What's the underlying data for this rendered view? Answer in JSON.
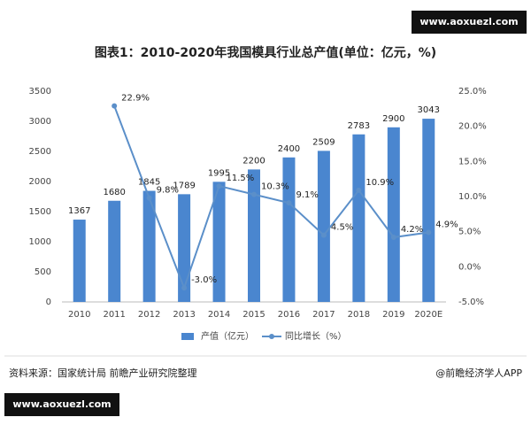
{
  "watermark_top": "www.aoxuezl.com",
  "watermark_bottom": "www.aoxuezl.com",
  "chart_data": {
    "type": "bar_line",
    "title": "图表1：2010-2020年我国模具行业总产值(单位：亿元，%)",
    "categories": [
      "2010",
      "2011",
      "2012",
      "2013",
      "2014",
      "2015",
      "2016",
      "2017",
      "2018",
      "2019",
      "2020E"
    ],
    "series": [
      {
        "name": "产值（亿元）",
        "type": "bar",
        "color": "#4a86cf",
        "values": [
          1367,
          1680,
          1845,
          1789,
          1995,
          2200,
          2400,
          2509,
          2783,
          2900,
          3043
        ]
      },
      {
        "name": "同比增长（%）",
        "type": "line",
        "axis": "y2",
        "color": "#5b8fc9",
        "values": [
          null,
          22.9,
          9.8,
          -3.0,
          11.5,
          10.3,
          9.1,
          4.5,
          10.9,
          4.2,
          4.9
        ],
        "value_labels": [
          null,
          "22.9%",
          "9.8%",
          "-3.0%",
          "11.5%",
          "10.3%",
          "9.1%",
          "4.5%",
          "10.9%",
          "4.2%",
          "4.9%"
        ]
      }
    ],
    "ylim": [
      0,
      3500
    ],
    "yticks": [
      0,
      500,
      1000,
      1500,
      2000,
      2500,
      3000,
      3500
    ],
    "y2lim": [
      -5,
      25
    ],
    "y2ticks": [
      {
        "value": -5,
        "label": "-5.0%"
      },
      {
        "value": 0,
        "label": "0.0%"
      },
      {
        "value": 5,
        "label": "5.0%"
      },
      {
        "value": 10,
        "label": "10.0%"
      },
      {
        "value": 15,
        "label": "15.0%"
      },
      {
        "value": 20,
        "label": "20.0%"
      },
      {
        "value": 25,
        "label": "25.0%"
      }
    ],
    "grid": false,
    "legend": "bottom"
  },
  "source": "资料来源：国家统计局 前瞻产业研究院整理",
  "credit": "@前瞻经济学人APP"
}
